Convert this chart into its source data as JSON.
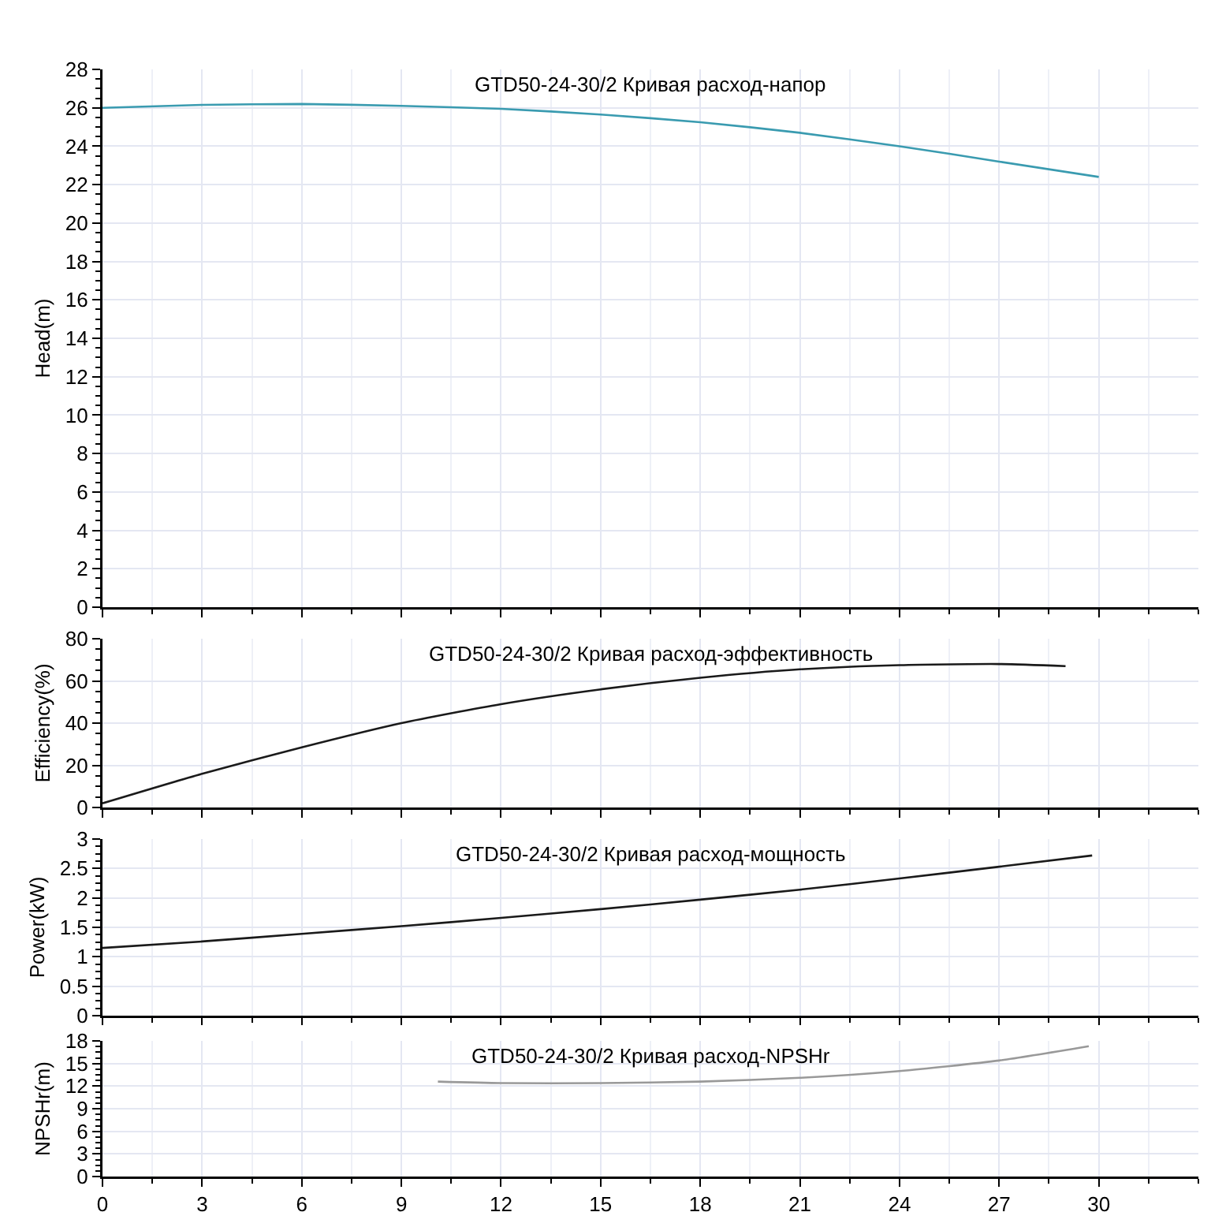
{
  "chart_data": [
    {
      "type": "line",
      "title": "GTD50-24-30/2 Кривая расход-напор",
      "ylabel": "Head(m)",
      "xlim": [
        0,
        33
      ],
      "xticks": [
        0,
        3,
        6,
        9,
        12,
        15,
        18,
        21,
        24,
        27,
        30
      ],
      "ylim": [
        0,
        28
      ],
      "yticks": [
        0,
        2,
        4,
        6,
        8,
        10,
        12,
        14,
        16,
        18,
        20,
        22,
        24,
        26,
        28
      ],
      "grid": true,
      "tick_labels": "y",
      "marker": "none",
      "series": [
        {
          "color": "#3a9bb0",
          "x": [
            0,
            3,
            6,
            9,
            12,
            15,
            18,
            21,
            24,
            27,
            30
          ],
          "values": [
            26,
            26.15,
            26.2,
            26.1,
            25.95,
            25.65,
            25.25,
            24.7,
            24.0,
            23.2,
            22.4
          ]
        }
      ]
    },
    {
      "type": "line",
      "title": "GTD50-24-30/2 Кривая расход-эффективность",
      "ylabel": "Efficiency(%)",
      "xlim": [
        0,
        33
      ],
      "xticks": [
        0,
        3,
        6,
        9,
        12,
        15,
        18,
        21,
        24,
        27,
        30
      ],
      "ylim": [
        0,
        80
      ],
      "yticks": [
        0,
        20,
        40,
        60,
        80
      ],
      "grid": true,
      "tick_labels": "y",
      "marker": "none",
      "series": [
        {
          "color": "#1a1a1a",
          "x": [
            0,
            3,
            6,
            9,
            12,
            15,
            18,
            21,
            24,
            27,
            29
          ],
          "values": [
            2,
            16,
            28.5,
            40,
            49,
            56,
            61.5,
            65.5,
            67.5,
            68,
            67
          ]
        }
      ]
    },
    {
      "type": "line",
      "title": "GTD50-24-30/2 Кривая расход-мощность",
      "ylabel": "Power(kW)",
      "xlim": [
        0,
        33
      ],
      "xticks": [
        0,
        3,
        6,
        9,
        12,
        15,
        18,
        21,
        24,
        27,
        30
      ],
      "ylim": [
        0,
        3
      ],
      "yticks": [
        0,
        0.5,
        1,
        1.5,
        2,
        2.5,
        3
      ],
      "grid": true,
      "tick_labels": "y",
      "marker": "none",
      "series": [
        {
          "color": "#1a1a1a",
          "x": [
            0,
            3,
            6,
            9,
            12,
            15,
            18,
            21,
            24,
            27,
            29.8
          ],
          "values": [
            1.15,
            1.26,
            1.39,
            1.52,
            1.66,
            1.81,
            1.97,
            2.14,
            2.33,
            2.53,
            2.72
          ]
        }
      ]
    },
    {
      "type": "line",
      "title": "GTD50-24-30/2 Кривая расход-NPSHr",
      "ylabel": "NPSHr(m)",
      "xlim": [
        0,
        33
      ],
      "xticks": [
        0,
        3,
        6,
        9,
        12,
        15,
        18,
        21,
        24,
        27,
        30
      ],
      "ylim": [
        0,
        18
      ],
      "yticks": [
        0,
        3,
        6,
        9,
        12,
        15,
        18
      ],
      "grid": true,
      "marker": "none",
      "series": [
        {
          "color": "#999999",
          "x": [
            10.1,
            12,
            15,
            18,
            21,
            24,
            27,
            29.7
          ],
          "values": [
            12.6,
            12.4,
            12.4,
            12.6,
            13.1,
            14.0,
            15.4,
            17.3
          ]
        }
      ]
    }
  ]
}
